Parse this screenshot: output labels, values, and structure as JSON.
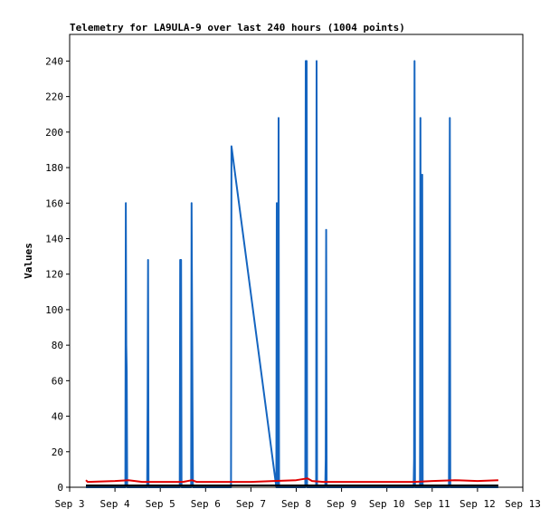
{
  "chart_data": {
    "type": "line",
    "title": "Telemetry for LA9ULA-9 over last 240 hours (1004 points)",
    "y_label": "Values",
    "xlim": [
      3,
      13
    ],
    "xticks": [
      {
        "value": 3,
        "label": "Sep 3"
      },
      {
        "value": 4,
        "label": "Sep 4"
      },
      {
        "value": 5,
        "label": "Sep 5"
      },
      {
        "value": 6,
        "label": "Sep 6"
      },
      {
        "value": 7,
        "label": "Sep 7"
      },
      {
        "value": 8,
        "label": "Sep 8"
      },
      {
        "value": 9,
        "label": "Sep 9"
      },
      {
        "value": 10,
        "label": "Sep 10"
      },
      {
        "value": 11,
        "label": "Sep 11"
      },
      {
        "value": 12,
        "label": "Sep 12"
      },
      {
        "value": 13,
        "label": "Sep 13"
      }
    ],
    "ylim": [
      0,
      255
    ],
    "yticks": [
      0,
      20,
      40,
      60,
      80,
      100,
      120,
      140,
      160,
      180,
      200,
      220,
      240
    ],
    "series": [
      {
        "color": "#1565c0",
        "x": [
          3.36,
          4.23,
          4.24,
          4.25,
          4.26,
          4.27,
          4.71,
          4.72,
          4.73,
          4.74,
          5.43,
          5.44,
          5.46,
          5.47,
          5.68,
          5.69,
          5.71,
          5.72,
          6.56,
          6.57,
          7.56,
          7.57,
          7.58,
          7.6,
          7.61,
          7.62,
          8.2,
          8.21,
          8.23,
          8.24,
          8.44,
          8.45,
          8.46,
          8.64,
          8.65,
          8.66,
          8.67,
          10.59,
          10.6,
          10.61,
          10.62,
          10.73,
          10.74,
          10.75,
          10.77,
          10.78,
          10.79,
          11.37,
          11.38,
          11.39,
          11.4,
          12.46
        ],
        "values": [
          0,
          0,
          160,
          80,
          65,
          0,
          0,
          48,
          128,
          0,
          0,
          128,
          128,
          0,
          0,
          160,
          48,
          0,
          0,
          192,
          0,
          160,
          0,
          0,
          208,
          0,
          0,
          240,
          240,
          0,
          0,
          240,
          0,
          0,
          16,
          145,
          0,
          0,
          16,
          240,
          0,
          0,
          208,
          0,
          0,
          176,
          0,
          0,
          96,
          208,
          0,
          0
        ]
      },
      {
        "color": "#e00000",
        "x": [
          3.36,
          3.4,
          4,
          4.3,
          4.6,
          5.5,
          5.7,
          5.8,
          7,
          7.5,
          8,
          8.25,
          8.35,
          8.6,
          10.6,
          11,
          11.5,
          12,
          12.46
        ],
        "values": [
          4,
          3,
          3.5,
          4,
          3,
          3,
          4,
          3,
          3,
          3.5,
          4,
          5,
          3.5,
          3,
          3,
          3.5,
          4,
          3.5,
          4
        ]
      },
      {
        "color": "#000000",
        "x": [
          3.36,
          12.46
        ],
        "values": [
          1,
          1
        ]
      }
    ]
  }
}
